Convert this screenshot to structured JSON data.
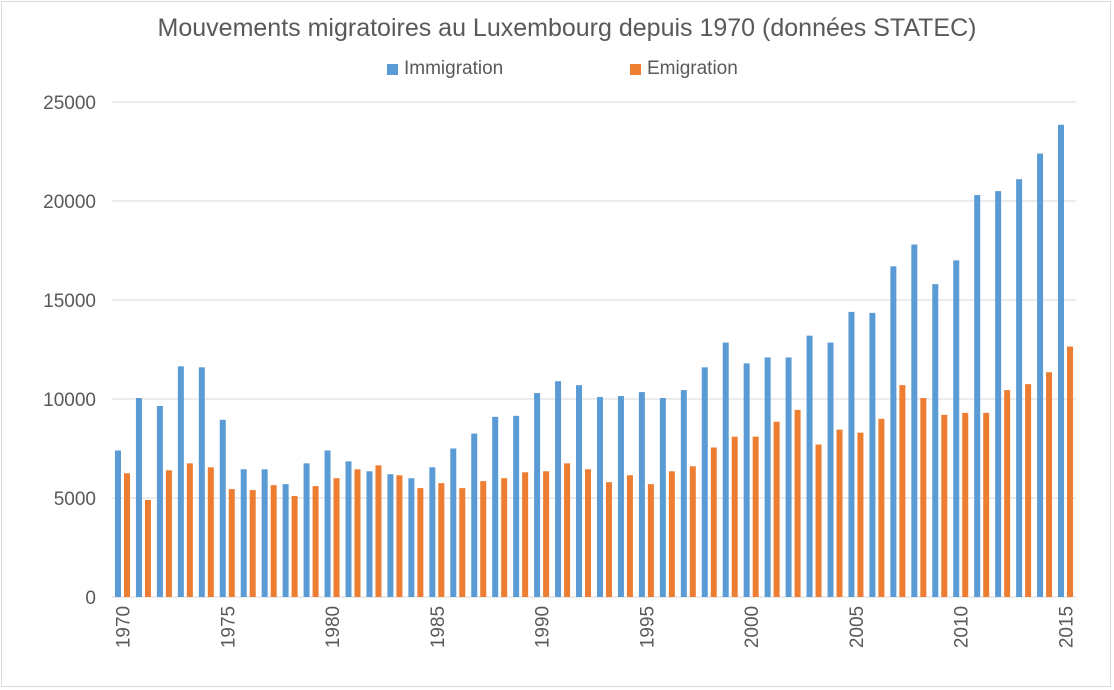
{
  "chart_data": {
    "type": "bar",
    "title": "Mouvements migratoires au Luxembourg depuis 1970 (données STATEC)",
    "legend_position": "top",
    "grid": true,
    "xlabel": "",
    "ylabel": "",
    "ylim": [
      0,
      25000
    ],
    "y_ticks": [
      "0",
      "5000",
      "10000",
      "15000",
      "20000",
      "25000"
    ],
    "x": [
      1970,
      1971,
      1972,
      1973,
      1974,
      1975,
      1976,
      1977,
      1978,
      1979,
      1980,
      1981,
      1982,
      1983,
      1984,
      1985,
      1986,
      1987,
      1988,
      1989,
      1990,
      1991,
      1992,
      1993,
      1994,
      1995,
      1996,
      1997,
      1998,
      1999,
      2000,
      2001,
      2002,
      2003,
      2004,
      2005,
      2006,
      2007,
      2008,
      2009,
      2010,
      2011,
      2012,
      2013,
      2014,
      2015
    ],
    "x_tick_labels": [
      "1970",
      "1975",
      "1980",
      "1985",
      "1990",
      "1995",
      "2000",
      "2005",
      "2010",
      "2015"
    ],
    "series": [
      {
        "name": "Immigration",
        "color": "#5b9bd5",
        "values": [
          7400,
          10050,
          9650,
          11650,
          11600,
          8950,
          6450,
          6450,
          5700,
          6750,
          7400,
          6850,
          6350,
          6200,
          6000,
          6550,
          7500,
          8250,
          9100,
          9150,
          10300,
          10900,
          10700,
          10100,
          10150,
          10350,
          10050,
          10450,
          11600,
          12850,
          11800,
          12100,
          12100,
          13200,
          12850,
          14400,
          14350,
          16700,
          17800,
          15800,
          17000,
          20300,
          20500,
          21100,
          22400,
          23850
        ]
      },
      {
        "name": "Emigration",
        "color": "#ed7d31",
        "values": [
          6250,
          4900,
          6400,
          6750,
          6550,
          5450,
          5400,
          5650,
          5100,
          5600,
          6000,
          6450,
          6650,
          6150,
          5500,
          5750,
          5500,
          5850,
          6000,
          6300,
          6350,
          6750,
          6450,
          5800,
          6150,
          5700,
          6350,
          6600,
          7550,
          8100,
          8100,
          8850,
          9450,
          7700,
          8450,
          8300,
          9000,
          10700,
          10050,
          9200,
          9300,
          9300,
          10450,
          10750,
          11350,
          12650
        ]
      }
    ]
  }
}
